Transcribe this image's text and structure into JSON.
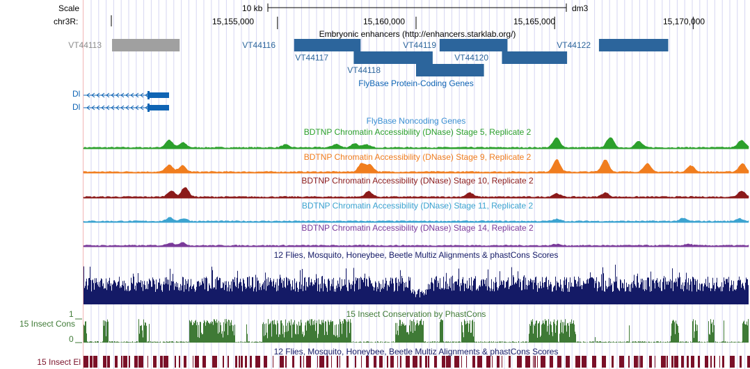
{
  "header": {
    "scale_label": "Scale",
    "scale_bar_text": "10 kb",
    "assembly": "dm3",
    "chrom_label": "chr3R:",
    "coord_ticks": [
      "15,155,000",
      "15,160,000",
      "15,165,000",
      "15,170,000"
    ]
  },
  "tracks": {
    "enhancers": {
      "title": "Embryonic enhancers (http://enhancers.starklab.org/)",
      "items": [
        {
          "name": "VT44113",
          "start": 15149030,
          "end": 15151470,
          "row": 0,
          "color": "#a0a0a0",
          "label_color": "#8c8c8c"
        },
        {
          "name": "VT44116",
          "start": 15155600,
          "end": 15158000,
          "row": 0,
          "color": "#2c659c",
          "label_color": "#2c659c"
        },
        {
          "name": "VT44117",
          "start": 15157750,
          "end": 15160600,
          "row": 1,
          "color": "#2c659c",
          "label_color": "#2c659c"
        },
        {
          "name": "VT44118",
          "start": 15160000,
          "end": 15162450,
          "row": 2,
          "color": "#2c659c",
          "label_color": "#2c659c"
        },
        {
          "name": "VT44119",
          "start": 15160850,
          "end": 15163300,
          "row": 0,
          "color": "#2c659c",
          "label_color": "#2c659c"
        },
        {
          "name": "VT44120",
          "start": 15163100,
          "end": 15165450,
          "row": 1,
          "color": "#2c659c",
          "label_color": "#2c659c"
        },
        {
          "name": "VT44122",
          "start": 15166600,
          "end": 15169100,
          "row": 0,
          "color": "#2c659c",
          "label_color": "#2c659c"
        }
      ]
    },
    "protein_coding": {
      "title": "FlyBase Protein-Coding Genes",
      "genes": [
        {
          "name": "Dl",
          "strand": "-"
        },
        {
          "name": "Dl",
          "strand": "-"
        }
      ]
    },
    "noncoding": {
      "title": "FlyBase Noncoding Genes"
    },
    "dnase": [
      {
        "title": "BDTNP Chromatin Accessibility (DNase) Stage 5, Replicate 2",
        "color": "#2ca02c"
      },
      {
        "title": "BDTNP Chromatin Accessibility (DNase) Stage 9, Replicate 2",
        "color": "#f07d1e"
      },
      {
        "title": "BDTNP Chromatin Accessibility (DNase) Stage 10, Replicate 2",
        "color": "#8b1a1a"
      },
      {
        "title": "BDTNP Chromatin Accessibility (DNase) Stage 11, Replicate 2",
        "color": "#3ba3d0"
      },
      {
        "title": "BDTNP Chromatin Accessibility (DNase) Stage 14, Replicate 2",
        "color": "#7a3a9a"
      }
    ],
    "multiz": {
      "title": "12 Flies, Mosquito, Honeybee, Beetle Multiz Alignments & phastCons Scores",
      "color": "#141a66"
    },
    "insect_cons": {
      "title": "15 Insect Conservation by PhastCons",
      "side_label": "15 Insect Cons",
      "axis_max": "1",
      "axis_min": "0",
      "color": "#3f7a36"
    },
    "insect_el": {
      "title": "12 Flies, Mosquito, Honeybee, Beetle Multiz Alignments & phastCons Scores",
      "side_label": "15 Insect El",
      "color": "#7a1028"
    }
  },
  "view": {
    "start": 15148000,
    "end": 15172000
  },
  "colors": {
    "guide_line": "#d6d6f2",
    "left_guide": "#f2b5b5",
    "tick_label": "#000000",
    "gene_blue": "#0f64b4"
  }
}
